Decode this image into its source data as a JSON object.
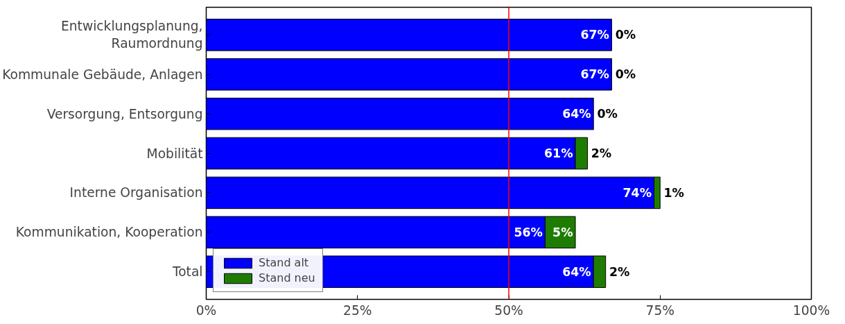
{
  "chart_data": {
    "type": "bar",
    "orientation": "horizontal",
    "stacked": true,
    "categories": [
      "Entwicklungsplanung, Raumordnung",
      "Kommunale Gebäude, Anlagen",
      "Versorgung, Entsorgung",
      "Mobilität",
      "Interne Organisation",
      "Kommunikation, Kooperation",
      "Total"
    ],
    "series": [
      {
        "name": "Stand alt",
        "color": "#0000ff",
        "values": [
          67,
          67,
          64,
          61,
          74,
          56,
          64
        ],
        "value_labels": [
          "67%",
          "67%",
          "64%",
          "61%",
          "74%",
          "56%",
          "64%"
        ]
      },
      {
        "name": "Stand neu",
        "color": "#1e7d00",
        "values": [
          0,
          0,
          0,
          2,
          1,
          5,
          2
        ],
        "value_labels": [
          "0%",
          "0%",
          "0%",
          "2%",
          "1%",
          "5%",
          "2%"
        ]
      }
    ],
    "xlim": [
      0,
      100
    ],
    "xticks": [
      {
        "value": 0,
        "label": "0%"
      },
      {
        "value": 25,
        "label": "25%"
      },
      {
        "value": 50,
        "label": "50%"
      },
      {
        "value": 75,
        "label": "75%"
      },
      {
        "value": 100,
        "label": "100%"
      }
    ],
    "ref_lines": [
      {
        "axis": "x",
        "value": 50,
        "color": "#ff0000"
      }
    ],
    "grid": false,
    "legend": "bottom left"
  }
}
